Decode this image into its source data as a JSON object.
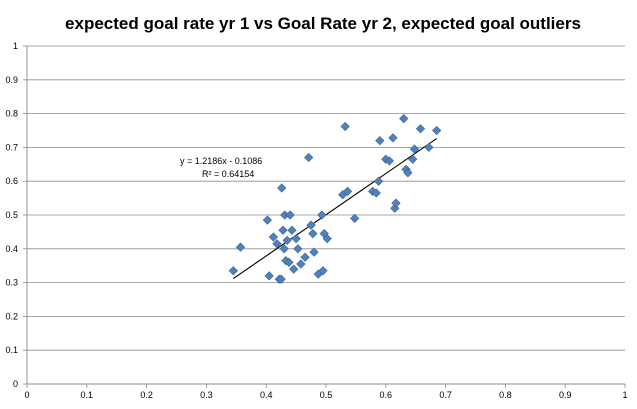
{
  "chart_data": {
    "type": "scatter",
    "title": "expected goal rate yr 1 vs Goal Rate yr 2, expected goal outliers",
    "xlabel": "",
    "ylabel": "",
    "xlim": [
      0,
      1
    ],
    "ylim": [
      0,
      1
    ],
    "x_ticks": [
      "0",
      "0.1",
      "0.2",
      "0.3",
      "0.4",
      "0.5",
      "0.6",
      "0.7",
      "0.8",
      "0.9",
      "1"
    ],
    "y_ticks": [
      "0",
      "0.1",
      "0.2",
      "0.3",
      "0.4",
      "0.5",
      "0.6",
      "0.7",
      "0.8",
      "0.9",
      "1"
    ],
    "grid": "horizontal",
    "legend": "none",
    "marker_color": "#4f81bd",
    "points": [
      {
        "x": 0.345,
        "y": 0.335
      },
      {
        "x": 0.357,
        "y": 0.405
      },
      {
        "x": 0.402,
        "y": 0.485
      },
      {
        "x": 0.405,
        "y": 0.32
      },
      {
        "x": 0.412,
        "y": 0.435
      },
      {
        "x": 0.418,
        "y": 0.415
      },
      {
        "x": 0.422,
        "y": 0.31
      },
      {
        "x": 0.425,
        "y": 0.31
      },
      {
        "x": 0.426,
        "y": 0.58
      },
      {
        "x": 0.428,
        "y": 0.455
      },
      {
        "x": 0.43,
        "y": 0.4
      },
      {
        "x": 0.431,
        "y": 0.5
      },
      {
        "x": 0.433,
        "y": 0.365
      },
      {
        "x": 0.435,
        "y": 0.425
      },
      {
        "x": 0.438,
        "y": 0.36
      },
      {
        "x": 0.44,
        "y": 0.5
      },
      {
        "x": 0.443,
        "y": 0.455
      },
      {
        "x": 0.446,
        "y": 0.34
      },
      {
        "x": 0.45,
        "y": 0.43
      },
      {
        "x": 0.453,
        "y": 0.4
      },
      {
        "x": 0.458,
        "y": 0.355
      },
      {
        "x": 0.465,
        "y": 0.375
      },
      {
        "x": 0.471,
        "y": 0.67
      },
      {
        "x": 0.475,
        "y": 0.47
      },
      {
        "x": 0.478,
        "y": 0.445
      },
      {
        "x": 0.48,
        "y": 0.39
      },
      {
        "x": 0.487,
        "y": 0.325
      },
      {
        "x": 0.493,
        "y": 0.5
      },
      {
        "x": 0.495,
        "y": 0.335
      },
      {
        "x": 0.497,
        "y": 0.445
      },
      {
        "x": 0.502,
        "y": 0.43
      },
      {
        "x": 0.528,
        "y": 0.56
      },
      {
        "x": 0.532,
        "y": 0.762
      },
      {
        "x": 0.536,
        "y": 0.57
      },
      {
        "x": 0.548,
        "y": 0.49
      },
      {
        "x": 0.578,
        "y": 0.57
      },
      {
        "x": 0.584,
        "y": 0.565
      },
      {
        "x": 0.588,
        "y": 0.6
      },
      {
        "x": 0.59,
        "y": 0.72
      },
      {
        "x": 0.6,
        "y": 0.665
      },
      {
        "x": 0.606,
        "y": 0.66
      },
      {
        "x": 0.612,
        "y": 0.728
      },
      {
        "x": 0.615,
        "y": 0.52
      },
      {
        "x": 0.617,
        "y": 0.535
      },
      {
        "x": 0.63,
        "y": 0.785
      },
      {
        "x": 0.634,
        "y": 0.635
      },
      {
        "x": 0.637,
        "y": 0.625
      },
      {
        "x": 0.645,
        "y": 0.665
      },
      {
        "x": 0.648,
        "y": 0.695
      },
      {
        "x": 0.658,
        "y": 0.755
      },
      {
        "x": 0.672,
        "y": 0.7
      },
      {
        "x": 0.685,
        "y": 0.75
      }
    ],
    "trendline": {
      "slope": 1.2186,
      "intercept": -0.1086,
      "x_range": [
        0.345,
        0.685
      ],
      "equation_label": "y = 1.2186x - 0.1086",
      "r2_label": "R² = 0.64154"
    }
  }
}
